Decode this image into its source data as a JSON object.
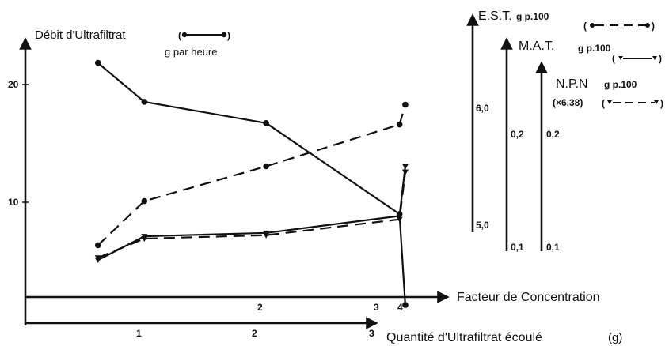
{
  "chart_data": {
    "type": "line",
    "y_left": {
      "title": "Débit d'Ultrafiltrat",
      "unit": "g par heure",
      "ticks": [
        "10",
        "20"
      ],
      "ylim": [
        0,
        23
      ]
    },
    "x_top": {
      "label": "Facteur de Concentration",
      "ticks": [
        "2",
        "3",
        "4"
      ]
    },
    "x_bottom": {
      "label": "Quantité d'Ultrafiltrat écoulé",
      "unit": "(g)",
      "ticks": [
        "1",
        "2",
        "3"
      ],
      "xlim": [
        0,
        3.5
      ]
    },
    "right_axes": [
      {
        "name": "E.S.T.",
        "unit": "g p.100",
        "ticks": [
          "5,0",
          "6,0"
        ]
      },
      {
        "name": "M.A.T.",
        "unit": "g p.100",
        "ticks": [
          "0,1",
          "0,2"
        ]
      },
      {
        "name": "N.P.N",
        "unit": "g p.100",
        "note": "(×6,38)",
        "ticks": [
          "0,1",
          "0,2"
        ]
      }
    ],
    "series": [
      {
        "key": "debit",
        "axis": "left",
        "style": "solid",
        "marker": "circle",
        "x": [
          0.65,
          1.05,
          2.1,
          3.25,
          3.3
        ],
        "y": [
          21.8,
          18.5,
          16.7,
          9.0,
          1.3
        ]
      },
      {
        "key": "est",
        "axis": "est",
        "style": "dashed",
        "marker": "circle",
        "x": [
          0.65,
          1.05,
          2.1,
          3.25,
          3.3
        ],
        "y": [
          4.82,
          5.2,
          5.5,
          5.86,
          6.03
        ]
      },
      {
        "key": "mat",
        "axis": "mat",
        "style": "solid",
        "marker": "triangle",
        "x": [
          0.65,
          1.05,
          2.1,
          3.25,
          3.3
        ],
        "y": [
          0.088,
          0.109,
          0.112,
          0.127,
          0.171
        ]
      },
      {
        "key": "npn",
        "axis": "npn",
        "style": "dashed",
        "marker": "triangle",
        "x": [
          0.65,
          1.05,
          2.1,
          3.25,
          3.3
        ],
        "y": [
          0.09,
          0.107,
          0.11,
          0.124,
          0.166
        ]
      }
    ]
  }
}
